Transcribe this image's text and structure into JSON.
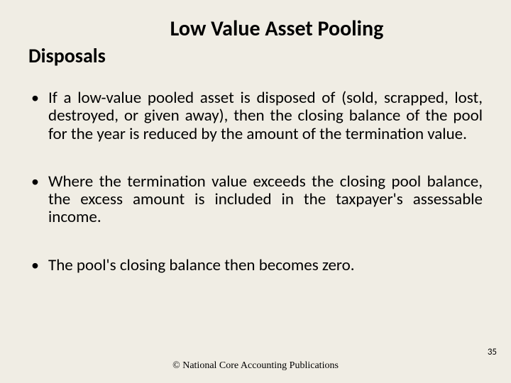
{
  "slide": {
    "title": "Low Value Asset Pooling",
    "subtitle": "Disposals",
    "bullets": [
      "If a low-value pooled asset is disposed of (sold, scrapped, lost, destroyed, or given away), then the closing balance of the pool for the year is reduced by the amount of the termination value.",
      "Where the termination value exceeds the closing pool balance, the excess amount is included in the taxpayer's assessable income.",
      "The pool's closing balance then becomes zero."
    ],
    "footer": "© National Core Accounting Publications",
    "page_number": "35",
    "background_color": "#f0ede4",
    "text_color": "#000000",
    "title_fontsize": 30,
    "subtitle_fontsize": 28,
    "body_fontsize": 23,
    "footer_fontsize": 14
  }
}
